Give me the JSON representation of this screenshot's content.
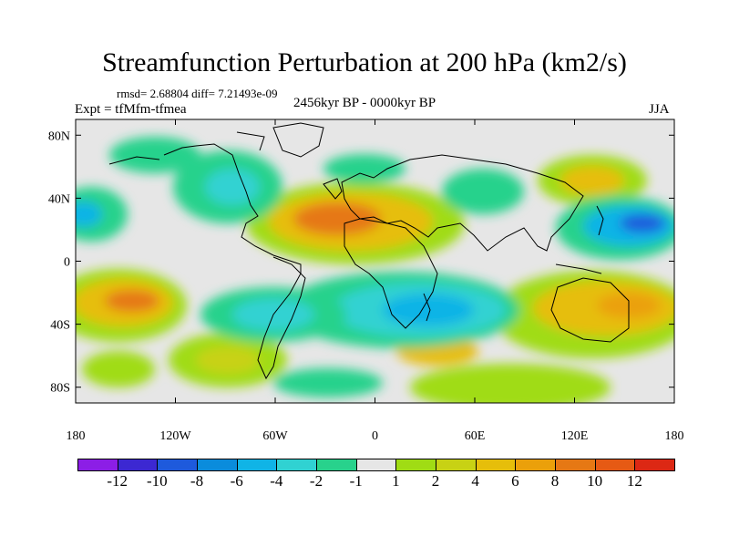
{
  "title": "Streamfunction Perturbation at 200 hPa (km2/s)",
  "stats": "rmsd= 2.68804 diff= 7.21493e-09",
  "experiment": "Expt = tfMfm-tfmea",
  "subtitle": "2456kyr BP - 0000kyr BP",
  "season": "JJA",
  "axes": {
    "y_ticks": [
      "80N",
      "40N",
      "0",
      "40S",
      "80S"
    ],
    "x_ticks": [
      "180",
      "120W",
      "60W",
      "0",
      "60E",
      "120E",
      "180"
    ]
  },
  "colorbar": {
    "colors": [
      "#8c1ee6",
      "#3c28d2",
      "#1e5adc",
      "#0a8cdc",
      "#10b4e6",
      "#30d2d2",
      "#28d28c",
      "#e6e6e6",
      "#a0dc14",
      "#c8d214",
      "#e6be0a",
      "#eba00a",
      "#e67814",
      "#e65a14",
      "#dc2814"
    ],
    "labels": [
      "-12",
      "-10",
      "-8",
      "-6",
      "-4",
      "-2",
      "-1",
      "1",
      "2",
      "4",
      "6",
      "8",
      "10",
      "12"
    ]
  }
}
